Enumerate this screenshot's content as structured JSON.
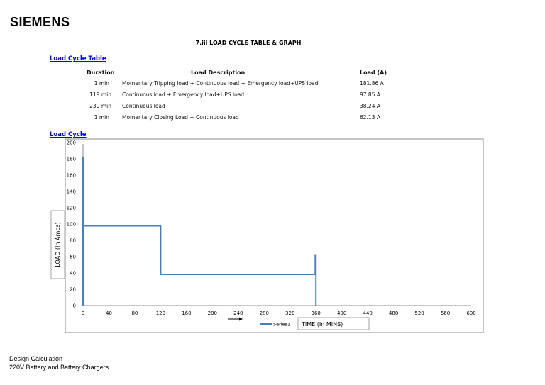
{
  "header": {
    "logo_text": "SIEMENS",
    "doc_title": "7.iii LOAD CYCLE TABLE & GRAPH"
  },
  "load_table": {
    "link_label": "Load Cycle Table",
    "columns": [
      "Duration",
      "Load Description",
      "Load (A)"
    ],
    "rows": [
      [
        "1 min",
        "Momentary Tripping load + Continuous load + Emergency load+UPS load",
        "181.86 A"
      ],
      [
        "119 min",
        "Continuous load +  Emergency load+UPS load",
        "97.85 A"
      ],
      [
        "239 min",
        "Continuous load",
        "38.24 A"
      ],
      [
        "1 min",
        "Momentary Closing Load + Continuous load",
        "62.13 A"
      ]
    ]
  },
  "chart_section": {
    "link_label": "Load Cycle"
  },
  "chart_data": {
    "type": "line",
    "title": "",
    "xlabel": "TIME (In MINS)",
    "ylabel": "LOAD (In Amps)",
    "xlim": [
      0,
      600
    ],
    "ylim": [
      0,
      200
    ],
    "x_ticks": [
      0,
      40,
      80,
      120,
      160,
      200,
      240,
      280,
      320,
      360,
      400,
      440,
      480,
      520,
      560,
      600
    ],
    "y_ticks": [
      0,
      20,
      40,
      60,
      80,
      100,
      120,
      140,
      160,
      180,
      200
    ],
    "grid": false,
    "legend_position": "bottom",
    "series_color": "#4a7ebb",
    "series": [
      {
        "name": "Series1",
        "x": [
          0,
          0,
          1,
          1,
          120,
          120,
          359,
          359,
          360,
          360
        ],
        "y": [
          0,
          181.86,
          181.86,
          97.85,
          97.85,
          38.24,
          38.24,
          62.13,
          62.13,
          0
        ]
      }
    ]
  },
  "footer": {
    "line1": "Design Calculation",
    "line2": "220V Battery and Battery Chargers"
  }
}
